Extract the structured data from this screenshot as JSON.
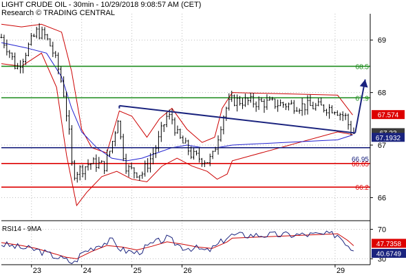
{
  "header": {
    "line1": "LIGHT CRUDE OIL - 30min - 10/29/2018 9:08:57 AM (CET)",
    "line2": "Research © TRADING CENTRAL"
  },
  "colors": {
    "price": "#000000",
    "bollinger": "#cc0000",
    "moving_average": "#1f1fd0",
    "resistance": "#1a8a1a",
    "support": "#dd0000",
    "pivot": "#1a237e",
    "arrow": "#1a237e",
    "rsi": "#1a237e",
    "rsi_ma": "#cc0000",
    "grid": "#bbbbbb",
    "last_price_tag": "#3a3a3a",
    "ma_tag": "#1a237e",
    "bb_tag": "#dd0000"
  },
  "chart_data": [
    {
      "type": "ohlc",
      "title": "LIGHT CRUDE OIL - 30min - 10/29/2018 9:08:57 AM (CET)",
      "x_tick_labels": [
        "23",
        "24",
        "25",
        "26",
        "29"
      ],
      "y_tick_labels": [
        "69",
        "68",
        "67",
        "66"
      ],
      "ylim": [
        65.6,
        69.5
      ],
      "grid": true,
      "horizontal_levels": [
        {
          "label": "68.5",
          "value": 68.5,
          "role": "resistance"
        },
        {
          "label": "67.9",
          "value": 67.9,
          "role": "resistance"
        },
        {
          "label": "66.95",
          "value": 66.95,
          "role": "pivot"
        },
        {
          "label": "66.65",
          "value": 66.65,
          "role": "support"
        },
        {
          "label": "66.2",
          "value": 66.2,
          "role": "support"
        }
      ],
      "right_tags": [
        {
          "label": "67.574",
          "value": 67.574,
          "role": "bollinger"
        },
        {
          "label": "67.23",
          "value": 67.23,
          "role": "last_price"
        },
        {
          "label": "67.1932",
          "value": 67.1932,
          "role": "moving_average"
        }
      ],
      "trendline": {
        "x_start": 24.75,
        "y_start": 67.75,
        "x_end": 29.45,
        "y_end": 67.23
      },
      "arrow": {
        "x_start": 29.45,
        "y_start": 67.23,
        "x_end": 29.65,
        "y_end": 68.25
      },
      "bars_x_start": 22.4,
      "bars_x_end": 29.42,
      "price_path": [
        {
          "x": 22.4,
          "y": 69.05
        },
        {
          "x": 22.55,
          "y": 68.8
        },
        {
          "x": 22.7,
          "y": 68.45
        },
        {
          "x": 22.82,
          "y": 68.65
        },
        {
          "x": 22.95,
          "y": 68.9
        },
        {
          "x": 23.1,
          "y": 69.15
        },
        {
          "x": 23.25,
          "y": 69.1
        },
        {
          "x": 23.4,
          "y": 68.85
        },
        {
          "x": 23.55,
          "y": 68.4
        },
        {
          "x": 23.65,
          "y": 67.95
        },
        {
          "x": 23.75,
          "y": 67.2
        },
        {
          "x": 23.82,
          "y": 66.45
        },
        {
          "x": 23.9,
          "y": 66.5
        },
        {
          "x": 24.0,
          "y": 66.55
        },
        {
          "x": 24.15,
          "y": 66.65
        },
        {
          "x": 24.3,
          "y": 66.65
        },
        {
          "x": 24.45,
          "y": 66.6
        },
        {
          "x": 24.55,
          "y": 66.85
        },
        {
          "x": 24.65,
          "y": 67.2
        },
        {
          "x": 24.72,
          "y": 67.55
        },
        {
          "x": 24.8,
          "y": 66.95
        },
        {
          "x": 24.9,
          "y": 66.55
        },
        {
          "x": 25.05,
          "y": 66.5
        },
        {
          "x": 25.2,
          "y": 66.45
        },
        {
          "x": 25.35,
          "y": 66.7
        },
        {
          "x": 25.5,
          "y": 67.0
        },
        {
          "x": 25.6,
          "y": 67.3
        },
        {
          "x": 25.7,
          "y": 67.55
        },
        {
          "x": 25.8,
          "y": 67.5
        },
        {
          "x": 25.9,
          "y": 67.2
        },
        {
          "x": 26.0,
          "y": 67.05
        },
        {
          "x": 26.1,
          "y": 66.95
        },
        {
          "x": 26.2,
          "y": 66.8
        },
        {
          "x": 26.35,
          "y": 66.75
        },
        {
          "x": 26.5,
          "y": 66.7
        },
        {
          "x": 26.6,
          "y": 66.75
        },
        {
          "x": 26.7,
          "y": 67.1
        },
        {
          "x": 26.8,
          "y": 67.5
        },
        {
          "x": 26.9,
          "y": 67.75
        },
        {
          "x": 27.0,
          "y": 67.85
        },
        {
          "x": 29.05,
          "y": 67.7
        },
        {
          "x": 29.15,
          "y": 67.6
        },
        {
          "x": 29.25,
          "y": 67.55
        },
        {
          "x": 29.35,
          "y": 67.3
        },
        {
          "x": 29.42,
          "y": 67.23
        }
      ],
      "bollinger_upper": [
        {
          "x": 22.4,
          "y": 69.3
        },
        {
          "x": 22.8,
          "y": 69.25
        },
        {
          "x": 23.2,
          "y": 69.3
        },
        {
          "x": 23.6,
          "y": 69.15
        },
        {
          "x": 23.8,
          "y": 68.4
        },
        {
          "x": 24.0,
          "y": 67.3
        },
        {
          "x": 24.2,
          "y": 66.95
        },
        {
          "x": 24.5,
          "y": 66.85
        },
        {
          "x": 24.75,
          "y": 67.65
        },
        {
          "x": 25.0,
          "y": 67.55
        },
        {
          "x": 25.3,
          "y": 67.15
        },
        {
          "x": 25.55,
          "y": 67.5
        },
        {
          "x": 25.8,
          "y": 67.7
        },
        {
          "x": 26.1,
          "y": 67.3
        },
        {
          "x": 26.4,
          "y": 67.05
        },
        {
          "x": 26.65,
          "y": 67.15
        },
        {
          "x": 26.8,
          "y": 67.7
        },
        {
          "x": 27.0,
          "y": 68.0
        },
        {
          "x": 29.1,
          "y": 67.95
        },
        {
          "x": 29.4,
          "y": 67.574
        }
      ],
      "bollinger_lower": [
        {
          "x": 22.4,
          "y": 68.55
        },
        {
          "x": 22.8,
          "y": 68.5
        },
        {
          "x": 23.2,
          "y": 68.75
        },
        {
          "x": 23.5,
          "y": 68.1
        },
        {
          "x": 23.7,
          "y": 66.8
        },
        {
          "x": 23.9,
          "y": 65.85
        },
        {
          "x": 24.1,
          "y": 66.1
        },
        {
          "x": 24.4,
          "y": 66.4
        },
        {
          "x": 24.7,
          "y": 66.5
        },
        {
          "x": 25.0,
          "y": 66.35
        },
        {
          "x": 25.3,
          "y": 66.3
        },
        {
          "x": 25.6,
          "y": 66.6
        },
        {
          "x": 25.9,
          "y": 66.75
        },
        {
          "x": 26.2,
          "y": 66.6
        },
        {
          "x": 26.5,
          "y": 66.5
        },
        {
          "x": 26.7,
          "y": 66.35
        },
        {
          "x": 26.9,
          "y": 66.45
        },
        {
          "x": 27.0,
          "y": 66.7
        },
        {
          "x": 29.1,
          "y": 67.25
        },
        {
          "x": 29.4,
          "y": 67.2
        }
      ],
      "moving_average_path": [
        {
          "x": 22.4,
          "y": 68.95
        },
        {
          "x": 22.9,
          "y": 68.85
        },
        {
          "x": 23.3,
          "y": 68.75
        },
        {
          "x": 23.6,
          "y": 68.3
        },
        {
          "x": 23.8,
          "y": 67.7
        },
        {
          "x": 24.0,
          "y": 67.25
        },
        {
          "x": 24.3,
          "y": 66.95
        },
        {
          "x": 24.6,
          "y": 66.75
        },
        {
          "x": 24.9,
          "y": 66.7
        },
        {
          "x": 25.2,
          "y": 66.75
        },
        {
          "x": 25.5,
          "y": 66.85
        },
        {
          "x": 25.8,
          "y": 66.95
        },
        {
          "x": 26.1,
          "y": 67.0
        },
        {
          "x": 26.4,
          "y": 66.95
        },
        {
          "x": 26.7,
          "y": 66.95
        },
        {
          "x": 27.0,
          "y": 67.0
        },
        {
          "x": 29.1,
          "y": 67.1
        },
        {
          "x": 29.4,
          "y": 67.1932
        }
      ]
    },
    {
      "type": "line",
      "title": "RSI14 - 9MA",
      "x_tick_labels": [
        "23",
        "24",
        "25",
        "26",
        "29"
      ],
      "y_tick_labels": [
        "70",
        "30"
      ],
      "ylim": [
        22,
        78
      ],
      "grid": true,
      "right_tags": [
        {
          "label": "47.7358",
          "value": 47.7358,
          "series": "MA9"
        },
        {
          "label": "40.6749",
          "value": 40.6749,
          "series": "RSI14"
        }
      ],
      "rsi_path": [
        {
          "x": 22.4,
          "y": 50
        },
        {
          "x": 22.8,
          "y": 45
        },
        {
          "x": 23.1,
          "y": 42
        },
        {
          "x": 23.4,
          "y": 35
        },
        {
          "x": 23.7,
          "y": 28
        },
        {
          "x": 23.85,
          "y": 24
        },
        {
          "x": 24.0,
          "y": 38
        },
        {
          "x": 24.3,
          "y": 48
        },
        {
          "x": 24.6,
          "y": 55
        },
        {
          "x": 24.8,
          "y": 42
        },
        {
          "x": 25.1,
          "y": 38
        },
        {
          "x": 25.4,
          "y": 50
        },
        {
          "x": 25.7,
          "y": 58
        },
        {
          "x": 26.0,
          "y": 46
        },
        {
          "x": 26.3,
          "y": 44
        },
        {
          "x": 26.5,
          "y": 40
        },
        {
          "x": 26.7,
          "y": 48
        },
        {
          "x": 26.9,
          "y": 60
        },
        {
          "x": 27.0,
          "y": 62
        },
        {
          "x": 29.1,
          "y": 63
        },
        {
          "x": 29.3,
          "y": 50
        },
        {
          "x": 29.42,
          "y": 40.6749
        }
      ],
      "rsi_ma_path": [
        {
          "x": 22.4,
          "y": 52
        },
        {
          "x": 22.8,
          "y": 48
        },
        {
          "x": 23.1,
          "y": 44
        },
        {
          "x": 23.4,
          "y": 38
        },
        {
          "x": 23.7,
          "y": 32
        },
        {
          "x": 23.9,
          "y": 30
        },
        {
          "x": 24.2,
          "y": 40
        },
        {
          "x": 24.5,
          "y": 48
        },
        {
          "x": 24.8,
          "y": 46
        },
        {
          "x": 25.1,
          "y": 42
        },
        {
          "x": 25.4,
          "y": 47
        },
        {
          "x": 25.7,
          "y": 53
        },
        {
          "x": 26.0,
          "y": 50
        },
        {
          "x": 26.3,
          "y": 46
        },
        {
          "x": 26.6,
          "y": 44
        },
        {
          "x": 26.9,
          "y": 53
        },
        {
          "x": 27.0,
          "y": 58
        },
        {
          "x": 29.1,
          "y": 64
        },
        {
          "x": 29.3,
          "y": 55
        },
        {
          "x": 29.42,
          "y": 47.7358
        }
      ]
    }
  ]
}
